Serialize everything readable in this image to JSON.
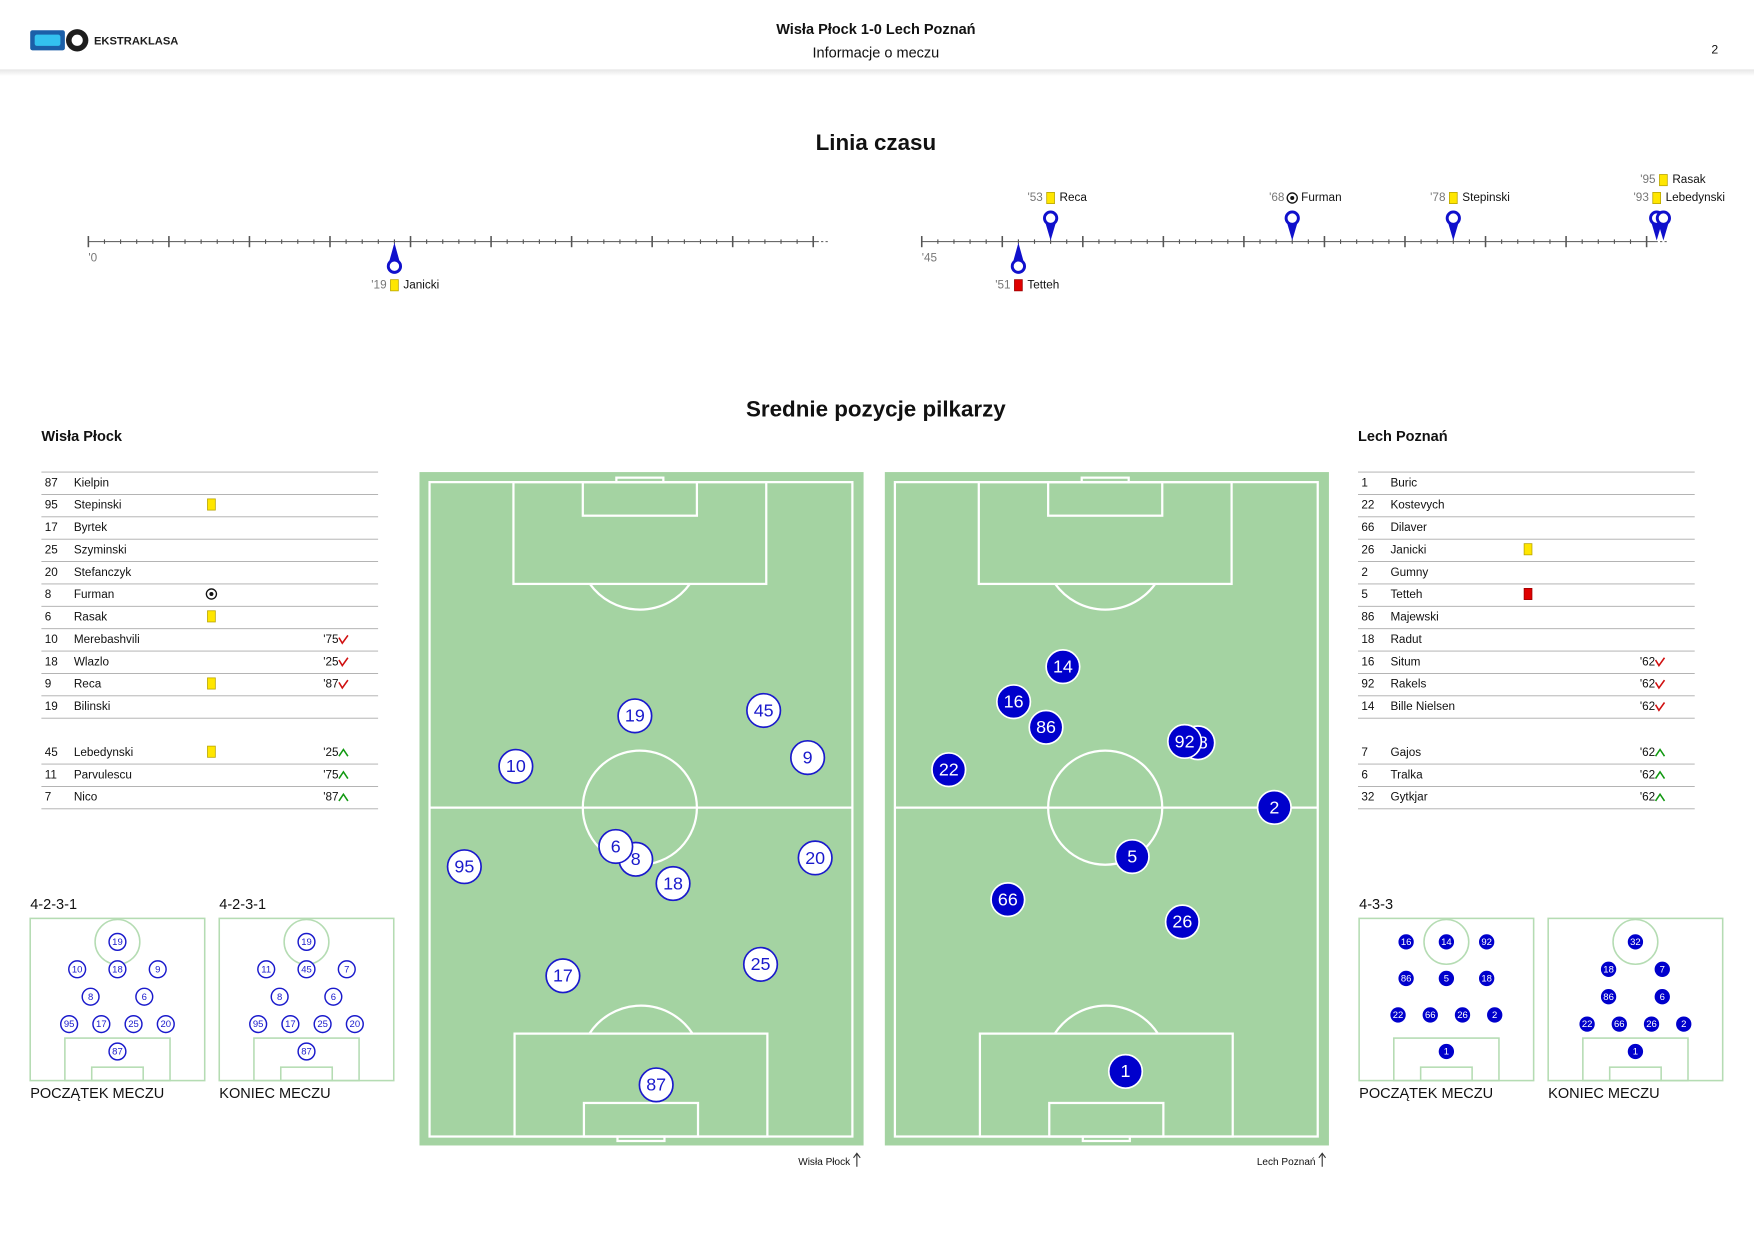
{
  "header": {
    "logo": "EKSTRAKLASA",
    "title": "Wisła Płock 1-0 Lech Poznań",
    "subtitle": "Informacje o meczu",
    "page": "2"
  },
  "timeline": {
    "title": "Linia czasu",
    "half_labels": [
      "'0",
      "'45"
    ],
    "home_events": [
      {
        "minute": "'53",
        "icon": "yellow",
        "player": "Reca"
      },
      {
        "minute": "'68",
        "icon": "goal",
        "player": "Furman"
      },
      {
        "minute": "'78",
        "icon": "yellow",
        "player": "Stepinski"
      },
      {
        "minute": "'93",
        "icon": "yellow",
        "player": "Lebedynski"
      },
      {
        "minute": "'95",
        "icon": "yellow",
        "player": "Rasak"
      }
    ],
    "away_events": [
      {
        "minute": "'19",
        "icon": "yellow",
        "player": "Janicki"
      },
      {
        "minute": "'51",
        "icon": "red",
        "player": "Tetteh"
      }
    ]
  },
  "positions_title": "Srednie pozycje pilkarzy",
  "teams": [
    {
      "name": "Wisła Płock",
      "marker_fill": "#ffffff",
      "marker_stroke": "#1a1acc",
      "marker_text": "#1a1acc",
      "starters": [
        {
          "number": 87,
          "name": "Kielpin"
        },
        {
          "number": 95,
          "name": "Stepinski",
          "icon": "yellow"
        },
        {
          "number": 17,
          "name": "Byrtek"
        },
        {
          "number": 25,
          "name": "Szyminski"
        },
        {
          "number": 20,
          "name": "Stefanczyk"
        },
        {
          "number": 8,
          "name": "Furman",
          "icon": "goal"
        },
        {
          "number": 6,
          "name": "Rasak",
          "icon": "yellow"
        },
        {
          "number": 10,
          "name": "Merebashvili",
          "sub": "'75"
        },
        {
          "number": 18,
          "name": "Wlazlo",
          "sub": "'25"
        },
        {
          "number": 9,
          "name": "Reca",
          "icon": "yellow",
          "sub": "'87"
        },
        {
          "number": 19,
          "name": "Bilinski"
        }
      ],
      "substitutes": [
        {
          "number": 45,
          "name": "Lebedynski",
          "icon": "yellow",
          "sub": "'25"
        },
        {
          "number": 11,
          "name": "Parvulescu",
          "sub": "'75"
        },
        {
          "number": 7,
          "name": "Nico",
          "sub": "'87"
        }
      ],
      "positions": [
        {
          "number": 19,
          "x": 48.5,
          "y": 36.2
        },
        {
          "number": 45,
          "x": 77.5,
          "y": 35.4
        },
        {
          "number": 10,
          "x": 21.7,
          "y": 43.7
        },
        {
          "number": 9,
          "x": 87.4,
          "y": 42.4
        },
        {
          "number": 95,
          "x": 10.1,
          "y": 58.6
        },
        {
          "number": 8,
          "x": 48.7,
          "y": 57.5
        },
        {
          "number": 6,
          "x": 44.2,
          "y": 55.6
        },
        {
          "number": 18,
          "x": 57.1,
          "y": 61.1
        },
        {
          "number": 20,
          "x": 89.1,
          "y": 57.3
        },
        {
          "number": 17,
          "x": 32.3,
          "y": 74.8
        },
        {
          "number": 25,
          "x": 76.8,
          "y": 73.1
        },
        {
          "number": 87,
          "x": 53.3,
          "y": 91.0
        }
      ],
      "formations": [
        {
          "label": "4-2-3-1",
          "caption": "POCZĄTEK MECZU",
          "rows": [
            [
              87
            ],
            [
              95,
              17,
              25,
              20
            ],
            [
              8,
              6
            ],
            [
              10,
              18,
              9
            ],
            [
              19
            ]
          ]
        },
        {
          "label": "4-2-3-1",
          "caption": "KONIEC MECZU",
          "rows": [
            [
              87
            ],
            [
              95,
              17,
              25,
              20
            ],
            [
              8,
              6
            ],
            [
              11,
              45,
              7
            ],
            [
              19
            ]
          ]
        }
      ]
    },
    {
      "name": "Lech Poznań",
      "marker_fill": "#0000cc",
      "marker_stroke": "#ffffff",
      "marker_text": "#ffffff",
      "starters": [
        {
          "number": 1,
          "name": "Buric"
        },
        {
          "number": 22,
          "name": "Kostevych"
        },
        {
          "number": 66,
          "name": "Dilaver"
        },
        {
          "number": 26,
          "name": "Janicki",
          "icon": "yellow"
        },
        {
          "number": 2,
          "name": "Gumny"
        },
        {
          "number": 5,
          "name": "Tetteh",
          "icon": "red"
        },
        {
          "number": 86,
          "name": "Majewski"
        },
        {
          "number": 18,
          "name": "Radut"
        },
        {
          "number": 16,
          "name": "Situm",
          "sub": "'62"
        },
        {
          "number": 92,
          "name": "Rakels",
          "sub": "'62"
        },
        {
          "number": 14,
          "name": "Bille Nielsen",
          "sub": "'62"
        }
      ],
      "substitutes": [
        {
          "number": 7,
          "name": "Gajos",
          "sub": "'62"
        },
        {
          "number": 6,
          "name": "Tralka",
          "sub": "'62"
        },
        {
          "number": 32,
          "name": "Gytkjar",
          "sub": "'62"
        }
      ],
      "positions": [
        {
          "number": 14,
          "x": 40.1,
          "y": 28.9
        },
        {
          "number": 16,
          "x": 29.0,
          "y": 34.1
        },
        {
          "number": 86,
          "x": 36.3,
          "y": 37.9
        },
        {
          "number": 22,
          "x": 14.4,
          "y": 44.2
        },
        {
          "number": 18,
          "x": 70.5,
          "y": 40.2
        },
        {
          "number": 92,
          "x": 67.5,
          "y": 40.0
        },
        {
          "number": 2,
          "x": 87.7,
          "y": 49.8
        },
        {
          "number": 5,
          "x": 55.7,
          "y": 57.1
        },
        {
          "number": 66,
          "x": 27.7,
          "y": 63.5
        },
        {
          "number": 26,
          "x": 67.0,
          "y": 66.8
        },
        {
          "number": 1,
          "x": 54.2,
          "y": 89.0
        }
      ],
      "formations": [
        {
          "label": "4-3-3",
          "caption": "POCZĄTEK MECZU",
          "rows": [
            [
              1
            ],
            [
              22,
              66,
              26,
              2
            ],
            [
              86,
              5,
              18
            ],
            [
              16,
              14,
              92
            ]
          ]
        },
        {
          "caption": "KONIEC MECZU",
          "rows": [
            [
              1
            ],
            [
              22,
              66,
              26,
              2
            ],
            [
              86,
              6
            ],
            [
              18,
              7
            ],
            [
              32
            ]
          ]
        }
      ]
    }
  ]
}
